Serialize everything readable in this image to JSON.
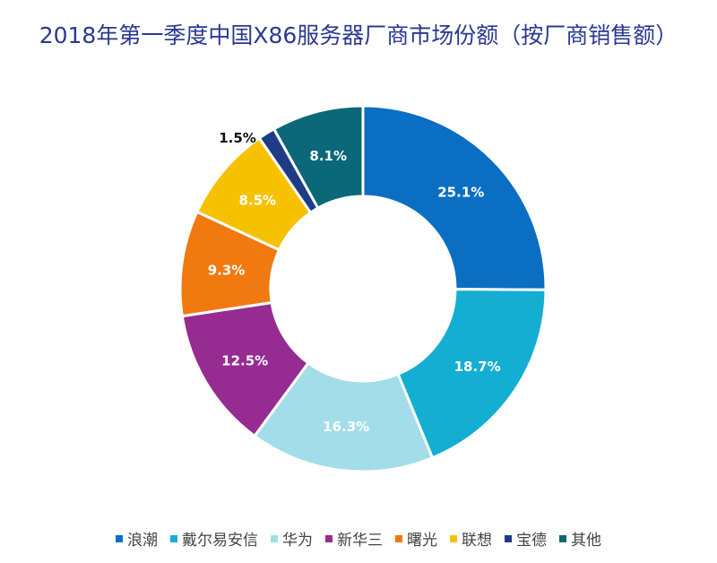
{
  "chart_data": {
    "type": "pie",
    "donut": true,
    "title": "2018年第一季度中国X86服务器厂商市场份额（按厂商销售额）",
    "unit": "%",
    "categories": [
      "浪潮",
      "戴尔易安信",
      "华为",
      "新华三",
      "曙光",
      "联想",
      "宝德",
      "其他"
    ],
    "values": [
      25.1,
      18.7,
      16.3,
      12.5,
      9.3,
      8.5,
      1.5,
      8.1
    ],
    "labels": [
      "25.1%",
      "18.7%",
      "16.3%",
      "12.5%",
      "9.3%",
      "8.5%",
      "1.5%",
      "8.1%"
    ],
    "colors": [
      "#0a6fc2",
      "#13aed1",
      "#a3dde9",
      "#962b92",
      "#f07a10",
      "#f6c200",
      "#1e3c86",
      "#0a6878"
    ],
    "legend_position": "bottom"
  }
}
